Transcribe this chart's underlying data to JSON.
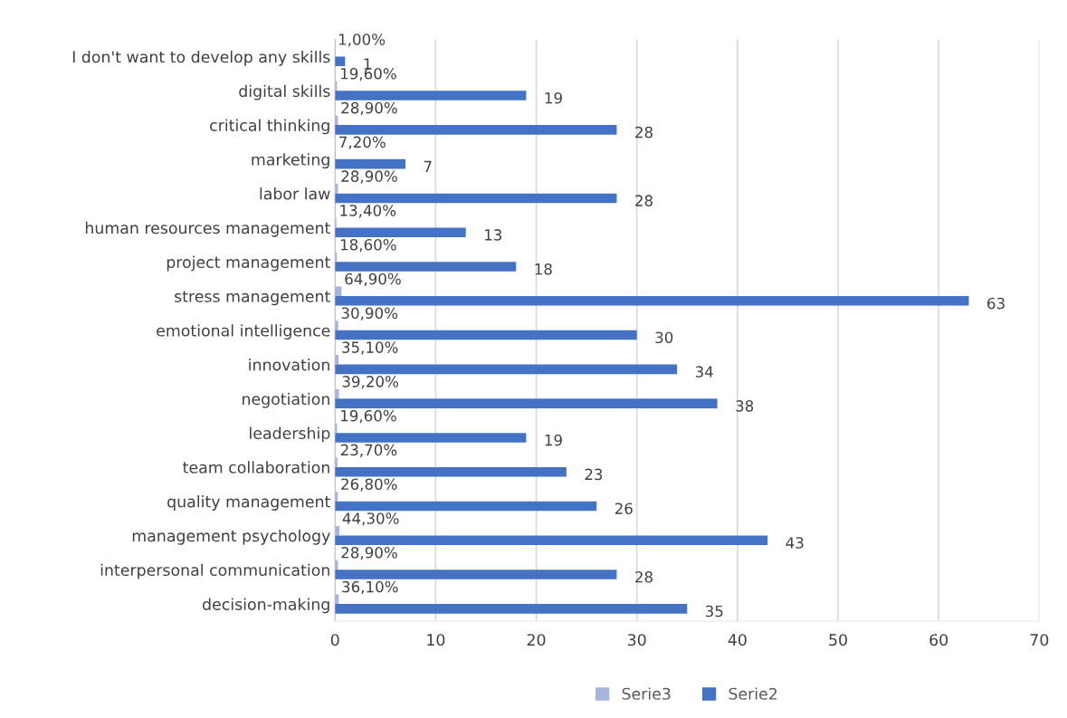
{
  "chart_data": {
    "type": "bar",
    "orientation": "horizontal",
    "categories": [
      "I don't want to develop any skills",
      "digital skills",
      "critical thinking",
      "marketing",
      "labor law",
      "human resources management",
      "project management",
      "stress management",
      "emotional intelligence",
      "innovation",
      "negotiation",
      "leadership",
      "team collaboration",
      "quality management",
      "management psychology",
      "interpersonal communication",
      "decision-making"
    ],
    "series": [
      {
        "name": "Serie3",
        "color": "#a5b5dc",
        "values": [
          0.01,
          0.196,
          0.289,
          0.072,
          0.289,
          0.134,
          0.186,
          0.649,
          0.309,
          0.351,
          0.392,
          0.196,
          0.237,
          0.268,
          0.443,
          0.289,
          0.361
        ],
        "value_labels": [
          "1,00%",
          "19,60%",
          "28,90%",
          "7,20%",
          "28,90%",
          "13,40%",
          "18,60%",
          "64,90%",
          "30,90%",
          "35,10%",
          "39,20%",
          "19,60%",
          "23,70%",
          "26,80%",
          "44,30%",
          "28,90%",
          "36,10%"
        ]
      },
      {
        "name": "Serie2",
        "color": "#4472c4",
        "values": [
          1,
          19,
          28,
          7,
          28,
          13,
          18,
          63,
          30,
          34,
          38,
          19,
          23,
          26,
          43,
          28,
          35
        ],
        "value_labels": [
          "1",
          "19",
          "28",
          "7",
          "28",
          "13",
          "18",
          "63",
          "30",
          "34",
          "38",
          "19",
          "23",
          "26",
          "43",
          "28",
          "35"
        ]
      }
    ],
    "xlim": [
      0,
      70
    ],
    "xticks": [
      0,
      10,
      20,
      30,
      40,
      50,
      60,
      70
    ],
    "grid": "x",
    "legend": "bottom"
  }
}
